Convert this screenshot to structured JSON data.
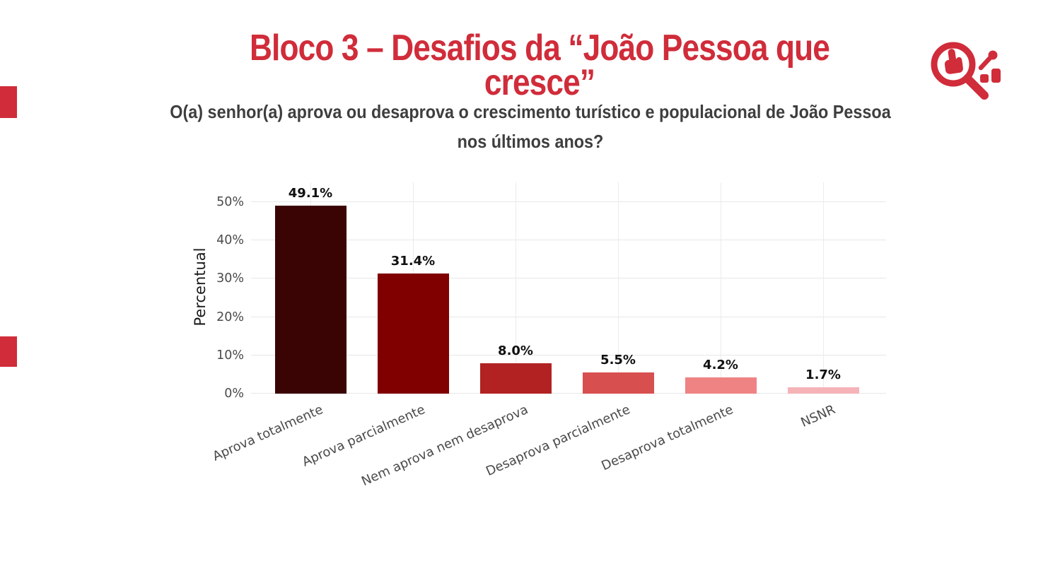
{
  "header": {
    "title": "Bloco 3 – Desafios da “João Pessoa que cresce”",
    "question_line1": "O(a) senhor(a) aprova ou desaprova o crescimento turístico e populacional de João Pessoa",
    "question_line2": "nos últimos anos?"
  },
  "branding": {
    "accent_color": "#d02c3a",
    "logo": "magnifier-with-hand-and-trend-chart"
  },
  "chart_data": {
    "type": "bar",
    "title": "",
    "categories": [
      "Aprova totalmente",
      "Aprova parcialmente",
      "Nem aprova nem desaprova",
      "Desaprova parcialmente",
      "Desaprova totalmente",
      "NSNR"
    ],
    "values": [
      49.1,
      31.4,
      8.0,
      5.5,
      4.2,
      1.7
    ],
    "value_labels": [
      "49.1%",
      "31.4%",
      "8.0%",
      "5.5%",
      "4.2%",
      "1.7%"
    ],
    "bar_colors": [
      "#3b0404",
      "#800000",
      "#b22222",
      "#d84f4f",
      "#ef8282",
      "#f5b3b8"
    ],
    "xlabel": "",
    "ylabel": "Percentual",
    "ylim": [
      0,
      50
    ],
    "ytick_values": [
      0,
      10,
      20,
      30,
      40,
      50
    ],
    "ytick_labels": [
      "0%",
      "10%",
      "20%",
      "30%",
      "40%",
      "50%"
    ],
    "grid": true,
    "legend": "none",
    "value_label_position": "above-bars",
    "x_tick_rotation_deg": 24
  }
}
